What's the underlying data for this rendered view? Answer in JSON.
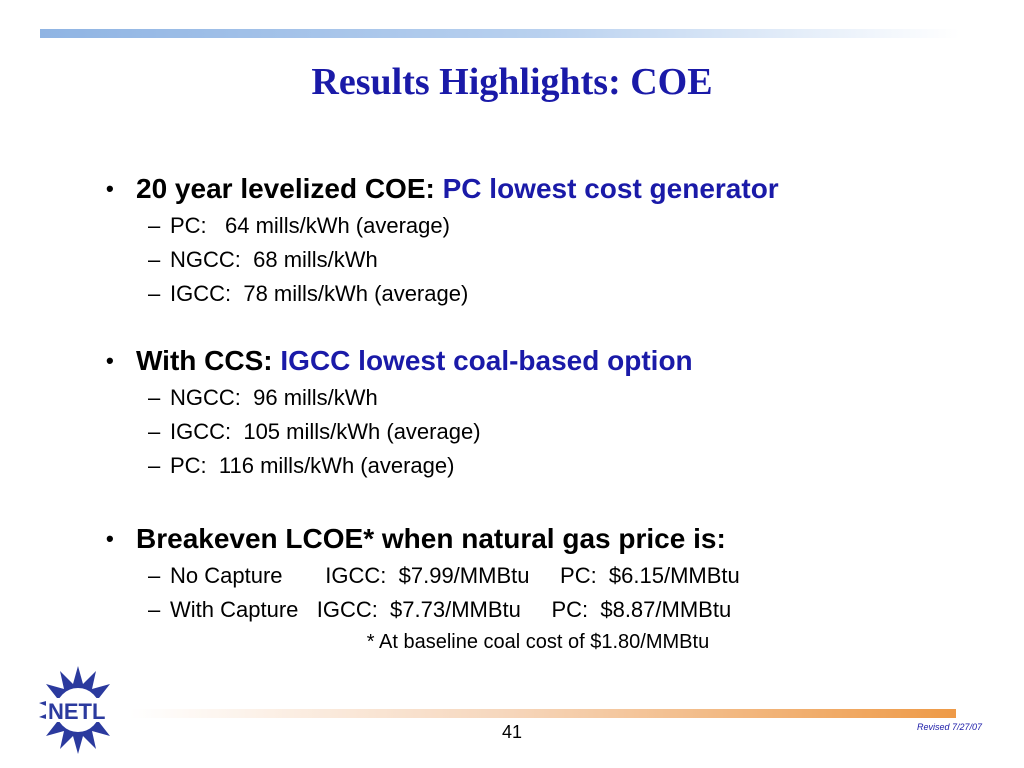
{
  "slide": {
    "title": "Results Highlights:  COE",
    "bullets": [
      {
        "marker": "•",
        "lead": "20 year levelized COE:  ",
        "highlight": "PC lowest cost generator",
        "sub": [
          "PC:   64 mills/kWh (average)",
          "NGCC:  68 mills/kWh",
          "IGCC:  78 mills/kWh (average)"
        ]
      },
      {
        "marker": "•",
        "lead": "With CCS:  ",
        "highlight": "IGCC lowest coal-based option",
        "sub": [
          "NGCC:  96 mills/kWh",
          "IGCC:  105 mills/kWh (average)",
          "PC:  116 mills/kWh (average)"
        ]
      },
      {
        "marker": "•",
        "lead": "Breakeven LCOE* when natural gas price is:",
        "highlight": "",
        "sub": [
          "No Capture       IGCC:  $7.99/MMBtu     PC:  $6.15/MMBtu",
          "With Capture   IGCC:  $7.73/MMBtu     PC:  $8.87/MMBtu"
        ]
      }
    ],
    "dash": "–",
    "footnote": "* At baseline coal cost of $1.80/MMBtu",
    "page_number": "41",
    "revised": "Revised 7/27/07",
    "logo_text": "NETL"
  },
  "colors": {
    "title": "#1a1aa8",
    "highlight": "#1a1aa8",
    "logo": "#2b3a9e",
    "top_bar": "#8fb4e3",
    "bottom_bar": "#ee9a47"
  }
}
